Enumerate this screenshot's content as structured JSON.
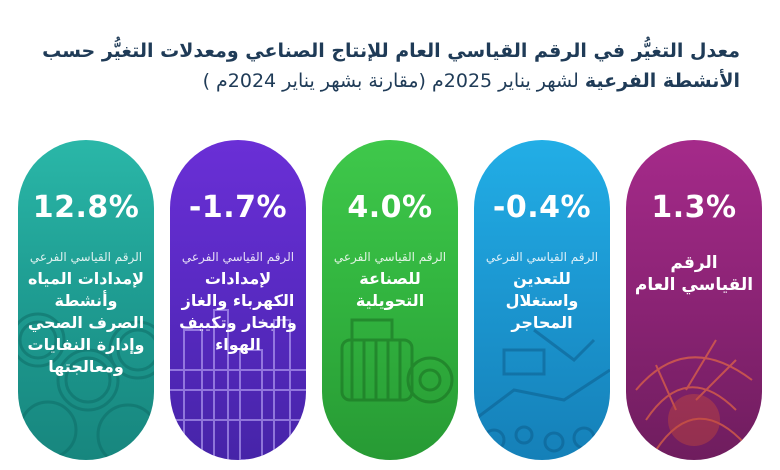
{
  "header": {
    "title_line1": "معدل التغيُّر في الرقم القياسي العام للإنتاج الصناعي ومعدلات التغيُّر حسب",
    "title_line2_bold": "الأنشطة الفرعية",
    "title_line2_rest": " لشهر يناير 2025م (مقارنة بشهر يناير 2024م )"
  },
  "cards": [
    {
      "value": "1.3%",
      "subtitle": "",
      "name": "الرقم القياسي العام",
      "color": "#8e2477",
      "icon": "industrial-sparks-photo"
    },
    {
      "value": "-0.4%",
      "subtitle": "الرقم القياسي الفرعي",
      "name": "للتعدين واستغلال المحاجر",
      "color": "#1c98d2",
      "icon": "mining-excavator-photo"
    },
    {
      "value": "4.0%",
      "subtitle": "الرقم القياسي الفرعي",
      "name": "للصناعة التحويلية",
      "color": "#33b640",
      "icon": "electric-motor-photo"
    },
    {
      "value": "-1.7%",
      "subtitle": "الرقم القياسي الفرعي",
      "name": "لإمدادات الكهرباء والغاز والبخار وتكييف الهواء",
      "color": "#5a2ac4",
      "icon": "power-plant-photo"
    },
    {
      "value": "12.8%",
      "subtitle": "الرقم القياسي الفرعي",
      "name": "لإمدادات المياه وأنشطة الصرف الصحي وإدارة النفايات ومعالجتها",
      "color": "#1f9e93",
      "icon": "water-pipes-photo"
    }
  ]
}
